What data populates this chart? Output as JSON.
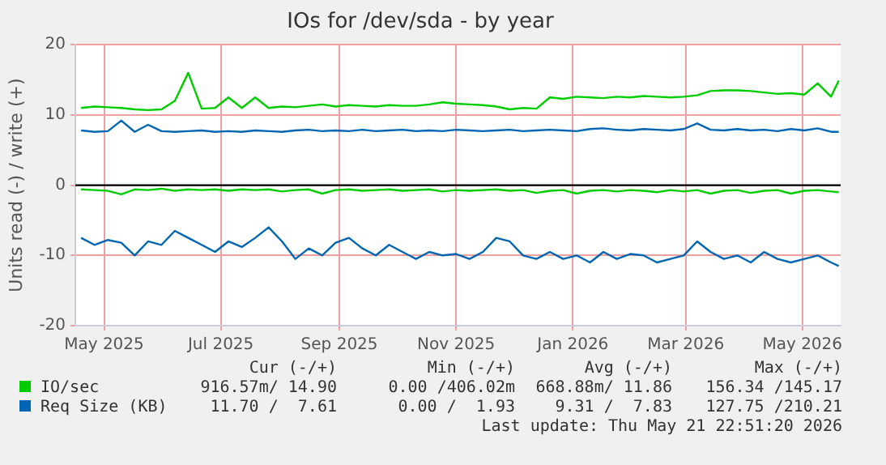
{
  "chart_data": {
    "type": "line",
    "title": "IOs for /dev/sda - by year",
    "ylabel": "Units read (-) / write (+)",
    "x": [
      "2025-04-19",
      "2025-04-26",
      "2025-05-03",
      "2025-05-10",
      "2025-05-17",
      "2025-05-24",
      "2025-05-31",
      "2025-06-07",
      "2025-06-14",
      "2025-06-21",
      "2025-06-28",
      "2025-07-05",
      "2025-07-12",
      "2025-07-19",
      "2025-07-26",
      "2025-08-02",
      "2025-08-09",
      "2025-08-16",
      "2025-08-23",
      "2025-08-30",
      "2025-09-06",
      "2025-09-13",
      "2025-09-20",
      "2025-09-27",
      "2025-10-04",
      "2025-10-11",
      "2025-10-18",
      "2025-10-25",
      "2025-11-01",
      "2025-11-08",
      "2025-11-15",
      "2025-11-22",
      "2025-11-29",
      "2025-12-06",
      "2025-12-13",
      "2025-12-20",
      "2025-12-27",
      "2026-01-03",
      "2026-01-10",
      "2026-01-17",
      "2026-01-24",
      "2026-01-31",
      "2026-02-07",
      "2026-02-14",
      "2026-02-21",
      "2026-02-28",
      "2026-03-07",
      "2026-03-14",
      "2026-03-21",
      "2026-03-28",
      "2026-04-04",
      "2026-04-11",
      "2026-04-18",
      "2026-04-25",
      "2026-05-02",
      "2026-05-09",
      "2026-05-16",
      "2026-05-20"
    ],
    "series": [
      {
        "name": "IO/sec",
        "color": "#00cc00",
        "values": [
          11,
          11.2,
          11.1,
          11,
          10.8,
          10.7,
          10.8,
          12,
          16,
          10.9,
          11,
          12.5,
          11,
          12.5,
          11,
          11.2,
          11.1,
          11.3,
          11.5,
          11.2,
          11.4,
          11.3,
          11.2,
          11.4,
          11.3,
          11.3,
          11.5,
          11.8,
          11.6,
          11.5,
          11.4,
          11.2,
          10.8,
          11,
          10.9,
          12.5,
          12.3,
          12.6,
          12.5,
          12.4,
          12.6,
          12.5,
          12.7,
          12.6,
          12.5,
          12.6,
          12.8,
          13.4,
          13.5,
          13.5,
          13.4,
          13.2,
          13.0,
          13.1,
          12.9,
          14.5,
          12.6,
          14.9
        ]
      },
      {
        "color": "#00cc00",
        "values": [
          -0.6,
          -0.7,
          -0.8,
          -1.3,
          -0.6,
          -0.7,
          -0.5,
          -0.8,
          -0.6,
          -0.7,
          -0.6,
          -0.8,
          -0.6,
          -0.7,
          -0.6,
          -0.9,
          -0.7,
          -0.6,
          -1.2,
          -0.7,
          -0.6,
          -0.8,
          -0.7,
          -0.6,
          -0.8,
          -0.7,
          -0.6,
          -0.9,
          -0.7,
          -0.8,
          -0.7,
          -0.6,
          -0.8,
          -0.7,
          -1.1,
          -0.8,
          -0.7,
          -1.2,
          -0.8,
          -0.7,
          -0.9,
          -0.7,
          -0.8,
          -1.0,
          -0.7,
          -0.9,
          -0.7,
          -1.2,
          -0.8,
          -0.7,
          -1.1,
          -0.8,
          -0.7,
          -1.2,
          -0.8,
          -0.7,
          -0.9,
          -1.0
        ]
      },
      {
        "name": "Req Size (KB)",
        "color": "#0066b3",
        "values": [
          7.8,
          7.6,
          7.7,
          9.2,
          7.6,
          8.6,
          7.7,
          7.6,
          7.7,
          7.8,
          7.6,
          7.7,
          7.6,
          7.8,
          7.7,
          7.6,
          7.8,
          7.9,
          7.7,
          7.8,
          7.7,
          7.9,
          7.7,
          7.8,
          7.9,
          7.7,
          7.8,
          7.7,
          7.9,
          7.8,
          7.7,
          7.8,
          7.9,
          7.7,
          7.8,
          7.9,
          7.8,
          7.7,
          8.0,
          8.1,
          7.9,
          7.8,
          8.0,
          7.9,
          7.8,
          8.0,
          8.8,
          7.9,
          7.8,
          8.0,
          7.8,
          7.9,
          7.7,
          8.0,
          7.8,
          8.1,
          7.6,
          7.6
        ]
      },
      {
        "color": "#0066b3",
        "values": [
          -7.5,
          -8.5,
          -7.8,
          -8.2,
          -10,
          -8,
          -8.5,
          -6.5,
          -7.5,
          -8.5,
          -9.5,
          -8,
          -8.8,
          -7.5,
          -6,
          -8,
          -10.5,
          -9,
          -10,
          -8.2,
          -7.5,
          -9,
          -10,
          -8.5,
          -9.5,
          -10.5,
          -9.5,
          -10,
          -9.8,
          -10.5,
          -9.5,
          -7.5,
          -8,
          -10,
          -10.5,
          -9.5,
          -10.5,
          -10,
          -11,
          -9.5,
          -10.5,
          -9.8,
          -10,
          -11,
          -10.5,
          -10,
          -8,
          -9.5,
          -10.5,
          -10,
          -11,
          -9.5,
          -10.5,
          -11,
          -10.5,
          -10,
          -11,
          -11.5
        ]
      }
    ],
    "xlim": [
      "2025-04-16",
      "2026-05-21"
    ],
    "xticks": [
      {
        "value": "2025-05-01",
        "label": "May 2025"
      },
      {
        "value": "2025-07-01",
        "label": "Jul 2025"
      },
      {
        "value": "2025-09-01",
        "label": "Sep 2025"
      },
      {
        "value": "2025-11-01",
        "label": "Nov 2025"
      },
      {
        "value": "2026-01-01",
        "label": "Jan 2026"
      },
      {
        "value": "2026-03-01",
        "label": "Mar 2026"
      },
      {
        "value": "2026-05-01",
        "label": "May 2026"
      }
    ],
    "ylim": [
      -20,
      20
    ],
    "yticks": [
      -20,
      -10,
      0,
      10,
      20
    ],
    "ref_lines": [
      {
        "axis": "y",
        "value": 0,
        "color": "#000000"
      }
    ],
    "grid": true,
    "legend": "bottom",
    "marker": "none",
    "line_style": "solid",
    "annotations": [
      "Cur (-/+)",
      "Min (-/+)",
      "Avg (-/+)",
      "Max (-/+)",
      "916.57m/ 14.90",
      "0.00 /406.02m",
      "668.88m/ 11.86",
      "156.34 /145.17",
      "11.70 /  7.61",
      "0.00 /  1.93",
      "9.31 /  7.83",
      "127.75 /210.21",
      "Last update: Thu May 21 22:51:20 2026"
    ]
  }
}
